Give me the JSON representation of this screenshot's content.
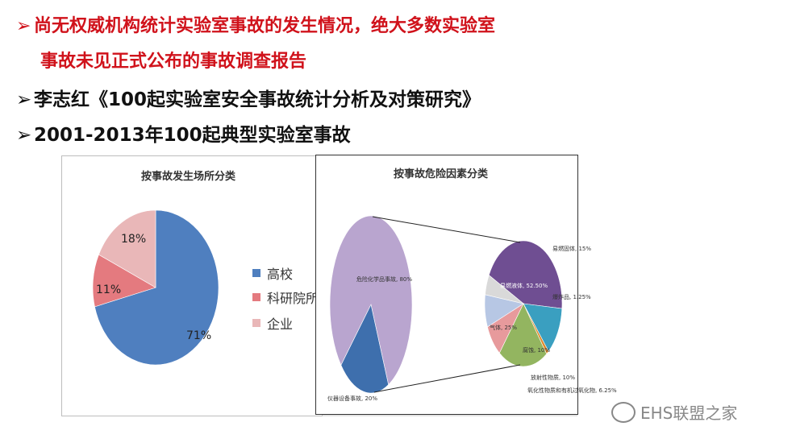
{
  "slide": {
    "bullets": [
      {
        "symbol": "➢",
        "text": "尚无权威机构统计实验室事故的发生情况，绝大多数实验室",
        "color": "#d0121b"
      },
      {
        "symbol": "",
        "text": "事故未见正式公布的事故调查报告",
        "color": "#d0121b"
      },
      {
        "symbol": "➢",
        "text": "李志红《100起实验室安全事故统计分析及对策研究》",
        "color": "#111111"
      },
      {
        "symbol": "➢",
        "text": "2001-2013年100起典型实验室事故",
        "color": "#111111"
      }
    ]
  },
  "chart_data": [
    {
      "type": "pie",
      "title": "按事故发生场所分类",
      "categories": [
        "高校",
        "科研院所",
        "企业"
      ],
      "values": [
        71,
        11,
        18
      ],
      "labels": [
        "71%",
        "11%",
        "18%"
      ],
      "colors": [
        "#4f7fbf",
        "#e47a7f",
        "#e9b7b8"
      ],
      "legend": "right"
    },
    {
      "type": "pie",
      "title": "按事故危险因素分类",
      "categories": [
        "危险化学品事故",
        "仪器设备事故"
      ],
      "values": [
        80,
        20
      ],
      "labels": [
        "危险化学品事故, 80%",
        "仪器设备事故, 20%"
      ],
      "colors": [
        "#b9a5cf",
        "#3e6fad"
      ],
      "breakdown": {
        "categories": [
          "易燃液体",
          "易燃固体",
          "爆炸品",
          "气体",
          "腐蚀",
          "放射性物质",
          "氧化性物质和有机过氧化物"
        ],
        "values": [
          52.5,
          15,
          1.25,
          25,
          10,
          10,
          6.25
        ],
        "labels": [
          "易燃液体, 52.50%",
          "易燃固体, 15%",
          "爆炸品, 1.25%",
          "气体, 25%",
          "腐蚀, 10%",
          "放射性物质, 10%",
          "氧化性物质和有机过氧化物, 6.25%"
        ],
        "colors": [
          "#6f4e92",
          "#3a9fc0",
          "#e08a2b",
          "#93b560",
          "#e79a9c",
          "#b7c7e4",
          "#d9d9d9"
        ]
      }
    }
  ],
  "watermark": {
    "text": "EHS联盟之家",
    "icon": "wechat-icon"
  }
}
